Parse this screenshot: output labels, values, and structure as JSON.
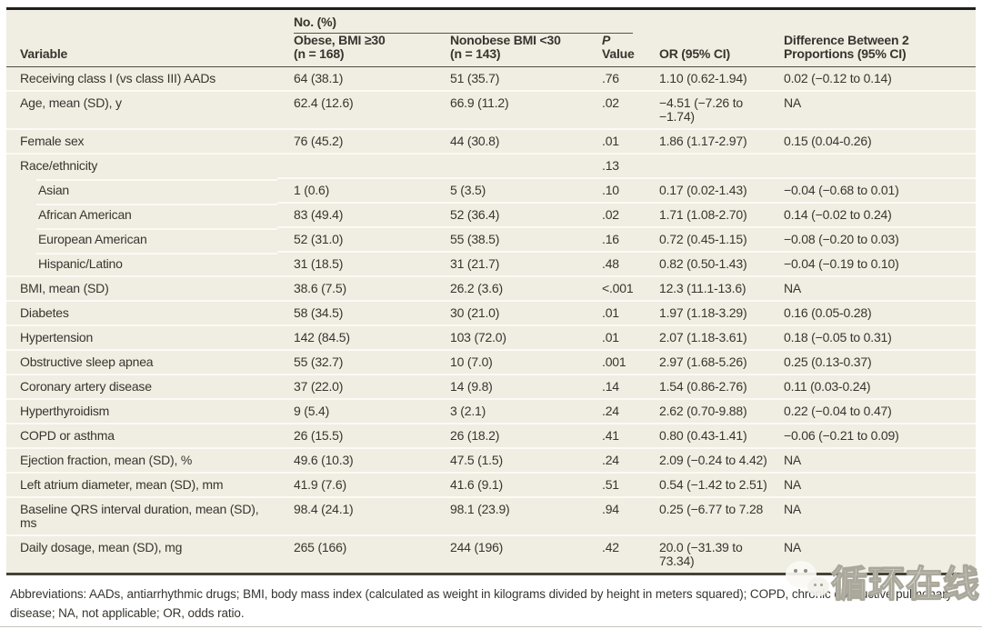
{
  "colors": {
    "table_background": "#f0ede2",
    "row_separator": "#fbfaf5",
    "text": "#37352f",
    "top_rule": "#201f1b",
    "bottom_rule": "#45423a",
    "page_hairline": "#c9c7bd"
  },
  "table": {
    "header": {
      "spanner": "No. (%)",
      "variable": "Variable",
      "obese_line1": "Obese, BMI ≥30",
      "obese_line2": "(n = 168)",
      "nonobese_line1": "Nonobese BMI <30",
      "nonobese_line2": "(n = 143)",
      "p_italic": "P",
      "p_rest": " Value",
      "or": "OR (95% CI)",
      "diff_line1": "Difference Between 2",
      "diff_line2": "Proportions (95% CI)"
    },
    "rows": [
      {
        "variable": "Receiving class I (vs class III) AADs",
        "indent": false,
        "obese": "64 (38.1)",
        "nonobese": "51 (35.7)",
        "p": ".76",
        "or": "1.10 (0.62-1.94)",
        "diff": "0.02 (−0.12 to 0.14)"
      },
      {
        "variable": "Age, mean (SD), y",
        "indent": false,
        "obese": "62.4 (12.6)",
        "nonobese": "66.9 (11.2)",
        "p": ".02",
        "or": "−4.51 (−7.26 to −1.74)",
        "diff": "NA"
      },
      {
        "variable": "Female sex",
        "indent": false,
        "obese": "76 (45.2)",
        "nonobese": "44 (30.8)",
        "p": ".01",
        "or": "1.86 (1.17-2.97)",
        "diff": "0.15 (0.04-0.26)"
      },
      {
        "variable": "Race/ethnicity",
        "indent": false,
        "obese": "",
        "nonobese": "",
        "p": ".13",
        "or": "",
        "diff": ""
      },
      {
        "variable": "Asian",
        "indent": true,
        "obese": "1 (0.6)",
        "nonobese": "5 (3.5)",
        "p": ".10",
        "or": "0.17 (0.02-1.43)",
        "diff": "−0.04 (−0.68 to 0.01)"
      },
      {
        "variable": "African American",
        "indent": true,
        "obese": "83 (49.4)",
        "nonobese": "52 (36.4)",
        "p": ".02",
        "or": "1.71 (1.08-2.70)",
        "diff": "0.14 (−0.02 to 0.24)"
      },
      {
        "variable": "European American",
        "indent": true,
        "obese": "52 (31.0)",
        "nonobese": "55 (38.5)",
        "p": ".16",
        "or": "0.72 (0.45-1.15)",
        "diff": "−0.08 (−0.20 to 0.03)"
      },
      {
        "variable": "Hispanic/Latino",
        "indent": true,
        "obese": "31 (18.5)",
        "nonobese": "31 (21.7)",
        "p": ".48",
        "or": "0.82 (0.50-1.43)",
        "diff": "−0.04 (−0.19 to 0.10)"
      },
      {
        "variable": "BMI, mean (SD)",
        "indent": false,
        "obese": "38.6 (7.5)",
        "nonobese": "26.2 (3.6)",
        "p": "<.001",
        "or": "12.3 (11.1-13.6)",
        "diff": "NA"
      },
      {
        "variable": "Diabetes",
        "indent": false,
        "obese": "58 (34.5)",
        "nonobese": "30 (21.0)",
        "p": ".01",
        "or": "1.97 (1.18-3.29)",
        "diff": "0.16 (0.05-0.28)"
      },
      {
        "variable": "Hypertension",
        "indent": false,
        "obese": "142 (84.5)",
        "nonobese": "103 (72.0)",
        "p": ".01",
        "or": "2.07 (1.18-3.61)",
        "diff": "0.18 (−0.05 to 0.31)"
      },
      {
        "variable": "Obstructive sleep apnea",
        "indent": false,
        "obese": "55 (32.7)",
        "nonobese": "10 (7.0)",
        "p": ".001",
        "or": "2.97 (1.68-5.26)",
        "diff": "0.25 (0.13-0.37)"
      },
      {
        "variable": "Coronary artery disease",
        "indent": false,
        "obese": "37 (22.0)",
        "nonobese": "14 (9.8)",
        "p": ".14",
        "or": "1.54 (0.86-2.76)",
        "diff": "0.11 (0.03-0.24)"
      },
      {
        "variable": "Hyperthyroidism",
        "indent": false,
        "obese": "9 (5.4)",
        "nonobese": "3 (2.1)",
        "p": ".24",
        "or": "2.62 (0.70-9.88)",
        "diff": "0.22 (−0.04 to 0.47)"
      },
      {
        "variable": "COPD or asthma",
        "indent": false,
        "obese": "26 (15.5)",
        "nonobese": "26 (18.2)",
        "p": ".41",
        "or": "0.80 (0.43-1.41)",
        "diff": "−0.06 (−0.21 to 0.09)"
      },
      {
        "variable": "Ejection fraction, mean (SD), %",
        "indent": false,
        "obese": "49.6 (10.3)",
        "nonobese": "47.5 (1.5)",
        "p": ".24",
        "or": "2.09 (−0.24 to 4.42)",
        "diff": "NA"
      },
      {
        "variable": "Left atrium diameter, mean (SD), mm",
        "indent": false,
        "obese": "41.9 (7.6)",
        "nonobese": "41.6 (9.1)",
        "p": ".51",
        "or": "0.54 (−1.42 to 2.51)",
        "diff": "NA"
      },
      {
        "variable": "Baseline QRS interval duration, mean (SD), ms",
        "indent": false,
        "obese": "98.4 (24.1)",
        "nonobese": "98.1 (23.9)",
        "p": ".94",
        "or": "0.25 (−6.77 to 7.28",
        "diff": "NA"
      },
      {
        "variable": "Daily dosage, mean (SD), mg",
        "indent": false,
        "obese": "265 (166)",
        "nonobese": "244 (196)",
        "p": ".42",
        "or": "20.0 (−31.39 to 73.34)",
        "diff": "NA"
      }
    ]
  },
  "footnote": "Abbreviations: AADs, antiarrhythmic drugs; BMI, body mass index (calculated as weight in kilograms divided by height in meters squared); COPD, chronic obstructive pulmonary disease; NA, not applicable; OR, odds ratio.",
  "watermark": {
    "text": "循环在线"
  }
}
